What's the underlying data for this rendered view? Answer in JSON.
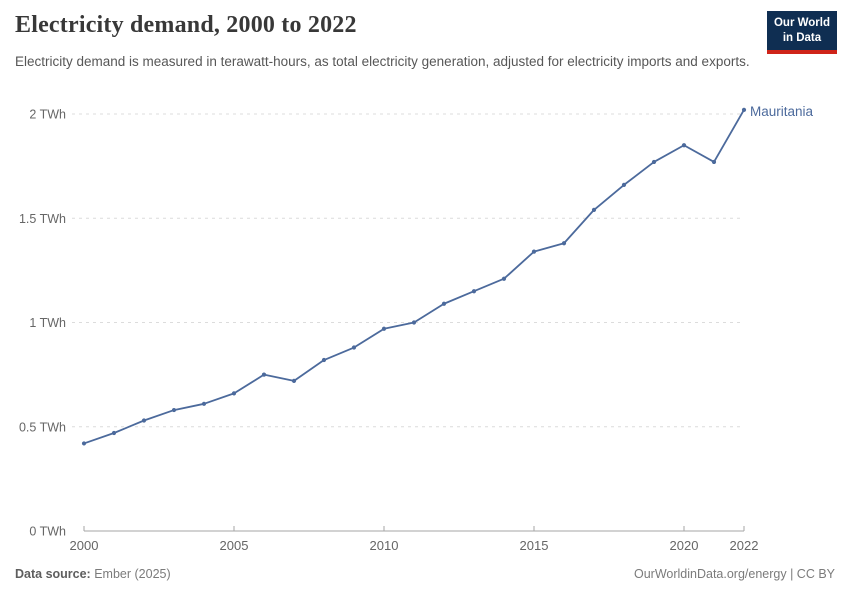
{
  "header": {
    "title": "Electricity demand, 2000 to 2022",
    "subtitle": "Electricity demand is measured in terawatt-hours, as total electricity generation, adjusted for electricity imports and exports.",
    "logo": {
      "line1": "Our World",
      "line2": "in Data"
    }
  },
  "footer": {
    "data_source_label": "Data source:",
    "data_source_value": " Ember (2025)",
    "credit": "OurWorldinData.org/energy | CC BY"
  },
  "colors": {
    "series": "#4c6a9c",
    "logo_navy": "#0f2e52",
    "logo_red": "#cf2419",
    "grid": "#dcdcdc",
    "axis_line": "#a6a6a6",
    "tick_text": "#666666"
  },
  "chart_data": {
    "type": "line",
    "title": "Electricity demand, 2000 to 2022",
    "xlabel": "",
    "ylabel": "",
    "unit": "TWh",
    "ylim": [
      0,
      2
    ],
    "grid": "horizontal-dashed",
    "legend_position": "line-end-label",
    "x": [
      2000,
      2001,
      2002,
      2003,
      2004,
      2005,
      2006,
      2007,
      2008,
      2009,
      2010,
      2011,
      2012,
      2013,
      2014,
      2015,
      2016,
      2017,
      2018,
      2019,
      2020,
      2021,
      2022
    ],
    "series": [
      {
        "name": "Mauritania",
        "color": "#4c6a9c",
        "values": [
          0.42,
          0.47,
          0.53,
          0.58,
          0.61,
          0.66,
          0.75,
          0.72,
          0.82,
          0.88,
          0.97,
          1.0,
          1.09,
          1.15,
          1.21,
          1.34,
          1.38,
          1.54,
          1.66,
          1.77,
          1.85,
          1.77,
          2.02
        ]
      }
    ],
    "yticks": [
      {
        "value": 0,
        "label": "0 TWh"
      },
      {
        "value": 0.5,
        "label": "0.5 TWh"
      },
      {
        "value": 1,
        "label": "1 TWh"
      },
      {
        "value": 1.5,
        "label": "1.5 TWh"
      },
      {
        "value": 2,
        "label": "2 TWh"
      }
    ],
    "xticks": [
      {
        "value": 2000,
        "label": "2000"
      },
      {
        "value": 2005,
        "label": "2005"
      },
      {
        "value": 2010,
        "label": "2010"
      },
      {
        "value": 2015,
        "label": "2015"
      },
      {
        "value": 2020,
        "label": "2020"
      },
      {
        "value": 2022,
        "label": "2022"
      }
    ]
  }
}
